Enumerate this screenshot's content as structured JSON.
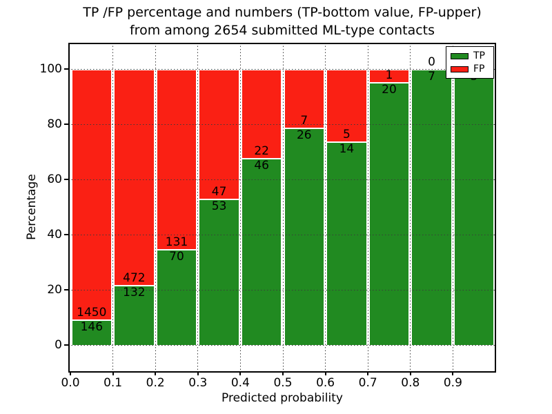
{
  "title": {
    "line1": "TP /FP percentage and numbers (TP-bottom value, FP-upper)",
    "line2": "from among 2654 submitted ML-type contacts"
  },
  "chart_data": {
    "type": "bar",
    "stacked": true,
    "normalized": "each bin scaled to 100%, green = TP share, red = FP share",
    "title": "TP /FP percentage and numbers (TP-bottom value, FP-upper) from among 2654 submitted ML-type contacts",
    "xlabel": "Predicted probability",
    "ylabel": "Percentage",
    "total_contacts": 2654,
    "x_tick_labels": [
      "0.0",
      "0.1",
      "0.2",
      "0.3",
      "0.4",
      "0.5",
      "0.6",
      "0.7",
      "0.8",
      "0.9"
    ],
    "y_ticks": [
      0,
      20,
      40,
      60,
      80,
      100
    ],
    "ylim": [
      -10,
      110
    ],
    "xlim": [
      0,
      1
    ],
    "grid": true,
    "legend_position": "upper right",
    "categories": [
      "0.0-0.1",
      "0.1-0.2",
      "0.2-0.3",
      "0.3-0.4",
      "0.4-0.5",
      "0.5-0.6",
      "0.6-0.7",
      "0.7-0.8",
      "0.8-0.9",
      "0.9-1.0"
    ],
    "series": [
      {
        "name": "TP",
        "color": "#218a21",
        "values": [
          146,
          132,
          70,
          53,
          46,
          26,
          14,
          20,
          7,
          5
        ]
      },
      {
        "name": "FP",
        "color": "#fa2014",
        "values": [
          1450,
          472,
          131,
          47,
          22,
          7,
          5,
          1,
          0,
          0
        ]
      }
    ],
    "tp_percent": [
      9.15,
      21.85,
      34.83,
      53.0,
      67.65,
      78.79,
      73.68,
      95.24,
      100.0,
      100.0
    ]
  },
  "legend": {
    "items": [
      {
        "label": "TP",
        "color": "#218a21"
      },
      {
        "label": "FP",
        "color": "#fa2014"
      }
    ]
  }
}
